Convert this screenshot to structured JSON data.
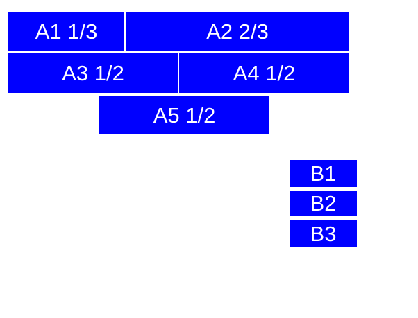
{
  "colors": {
    "background": "#ffffff",
    "box_fill": "#0000ff",
    "box_text": "#ffffff"
  },
  "blocks": {
    "a1": "A1 1/3",
    "a2": "A2 2/3",
    "a3": "A3 1/2",
    "a4": "A4 1/2",
    "a5": "A5 1/2",
    "b1": "B1",
    "b2": "B2",
    "b3": "B3"
  }
}
